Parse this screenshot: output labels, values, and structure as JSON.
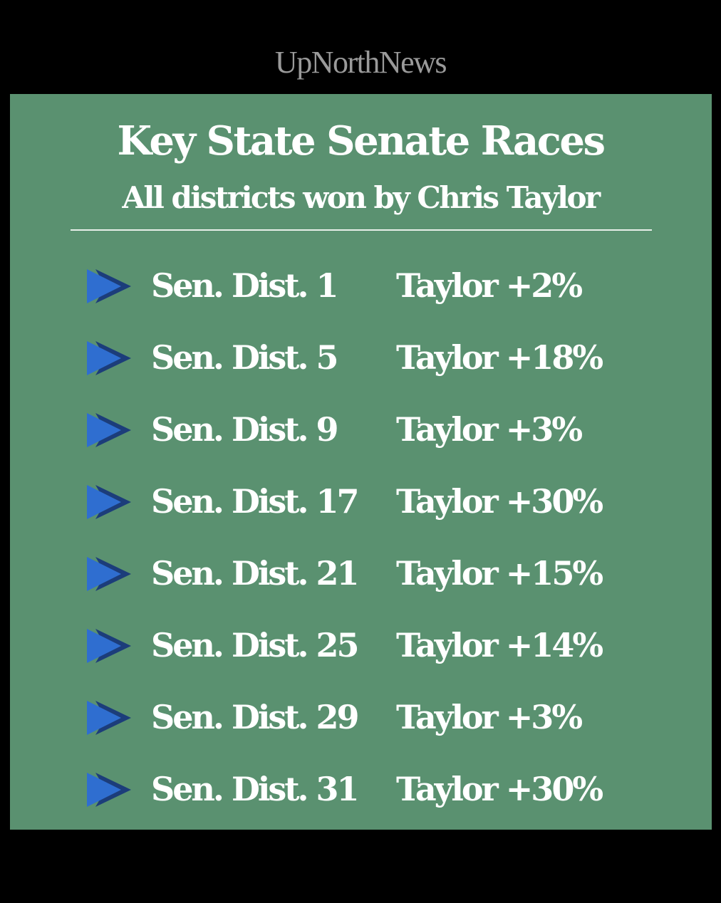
{
  "brand": {
    "name": "UpNorthNews"
  },
  "header": {
    "title": "Key State Senate Races",
    "subtitle": "All districts won by Chris Taylor"
  },
  "colors": {
    "background": "#000000",
    "panel": "#5a9170",
    "arrow_front": "#2f6ed0",
    "arrow_back": "#1c3d7a",
    "text": "#ffffff",
    "brand_text": "#9a9a9a"
  },
  "races": [
    {
      "icon": "arrow-right-icon",
      "district": "Sen. Dist. 1",
      "result": "Taylor +2%"
    },
    {
      "icon": "arrow-right-icon",
      "district": "Sen. Dist. 5",
      "result": "Taylor +18%"
    },
    {
      "icon": "arrow-right-icon",
      "district": "Sen. Dist. 9",
      "result": "Taylor +3%"
    },
    {
      "icon": "arrow-right-icon",
      "district": "Sen. Dist. 17",
      "result": "Taylor +30%"
    },
    {
      "icon": "arrow-right-icon",
      "district": "Sen. Dist. 21",
      "result": "Taylor +15%"
    },
    {
      "icon": "arrow-right-icon",
      "district": "Sen. Dist. 25",
      "result": "Taylor +14%"
    },
    {
      "icon": "arrow-right-icon",
      "district": "Sen. Dist. 29",
      "result": "Taylor +3%"
    },
    {
      "icon": "arrow-right-icon",
      "district": "Sen. Dist. 31",
      "result": "Taylor +30%"
    }
  ]
}
